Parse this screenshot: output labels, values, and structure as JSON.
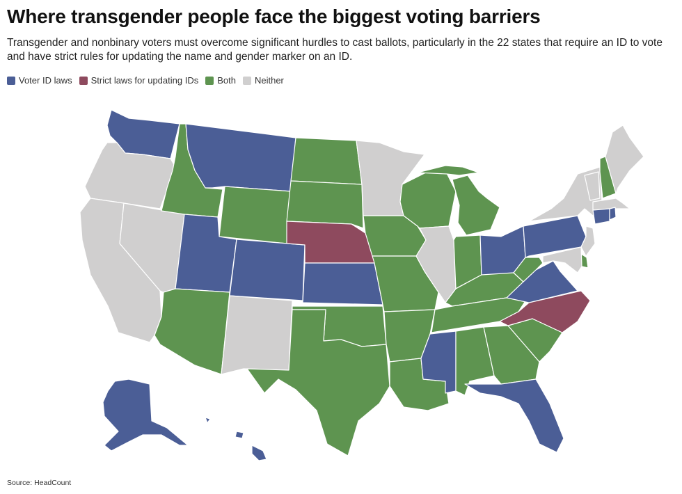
{
  "title": "Where transgender people face the biggest voting barriers",
  "subtitle": "Transgender and nonbinary voters must overcome significant hurdles to cast ballots, particularly in the 22 states that require an ID to vote and have strict rules for updating the name and gender marker on an ID.",
  "legend": [
    {
      "key": "voter_id",
      "label": "Voter ID laws",
      "color": "#4b5e96"
    },
    {
      "key": "strict",
      "label": "Strict laws for updating IDs",
      "color": "#8e4a5e"
    },
    {
      "key": "both",
      "label": "Both",
      "color": "#5e9450"
    },
    {
      "key": "neither",
      "label": "Neither",
      "color": "#d0cfcf"
    }
  ],
  "source": "Source: HeadCount",
  "states": {
    "WA": "voter_id",
    "OR": "neither",
    "CA": "neither",
    "NV": "neither",
    "ID": "both",
    "MT": "voter_id",
    "WY": "both",
    "UT": "voter_id",
    "AZ": "both",
    "CO": "voter_id",
    "NM": "neither",
    "ND": "both",
    "SD": "both",
    "NE": "strict",
    "KS": "voter_id",
    "OK": "both",
    "TX": "both",
    "MN": "neither",
    "IA": "both",
    "MO": "both",
    "AR": "both",
    "LA": "both",
    "WI": "both",
    "IL": "neither",
    "MI": "both",
    "IN": "both",
    "OH": "voter_id",
    "KY": "both",
    "TN": "both",
    "MS": "voter_id",
    "AL": "both",
    "GA": "both",
    "FL": "voter_id",
    "SC": "both",
    "NC": "strict",
    "VA": "voter_id",
    "WV": "both",
    "PA": "voter_id",
    "NY": "neither",
    "VT": "neither",
    "NH": "both",
    "ME": "neither",
    "MA": "neither",
    "CT": "voter_id",
    "RI": "voter_id",
    "NJ": "neither",
    "DE": "both",
    "MD": "neither",
    "AK": "voter_id",
    "HI": "voter_id"
  }
}
